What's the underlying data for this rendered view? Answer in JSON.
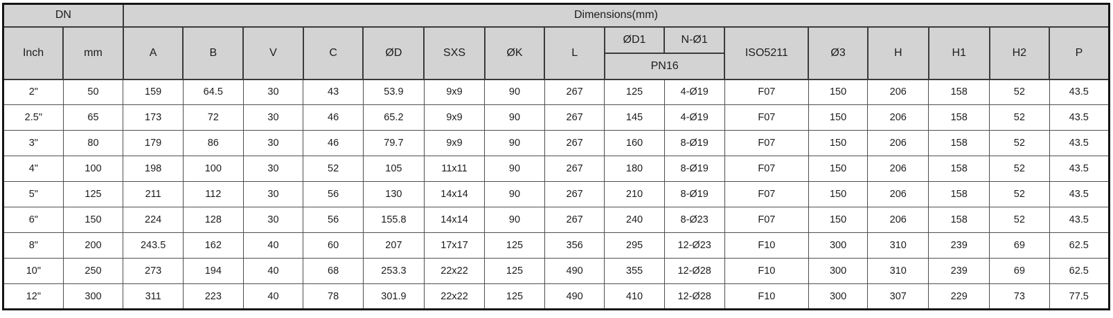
{
  "table": {
    "header": {
      "dn_label": "DN",
      "dimensions_label": "Dimensions(mm)",
      "pn16_label": "PN16",
      "columns": [
        "Inch",
        "mm",
        "A",
        "B",
        "V",
        "C",
        "ØD",
        "SXS",
        "ØK",
        "L",
        "ØD1",
        "N-Ø1",
        "ISO5211",
        "Ø3",
        "H",
        "H1",
        "H2",
        "P"
      ]
    },
    "rows": [
      [
        "2\"",
        "50",
        "159",
        "64.5",
        "30",
        "43",
        "53.9",
        "9x9",
        "90",
        "267",
        "125",
        "4-Ø19",
        "F07",
        "150",
        "206",
        "158",
        "52",
        "43.5"
      ],
      [
        "2.5\"",
        "65",
        "173",
        "72",
        "30",
        "46",
        "65.2",
        "9x9",
        "90",
        "267",
        "145",
        "4-Ø19",
        "F07",
        "150",
        "206",
        "158",
        "52",
        "43.5"
      ],
      [
        "3\"",
        "80",
        "179",
        "86",
        "30",
        "46",
        "79.7",
        "9x9",
        "90",
        "267",
        "160",
        "8-Ø19",
        "F07",
        "150",
        "206",
        "158",
        "52",
        "43.5"
      ],
      [
        "4\"",
        "100",
        "198",
        "100",
        "30",
        "52",
        "105",
        "11x11",
        "90",
        "267",
        "180",
        "8-Ø19",
        "F07",
        "150",
        "206",
        "158",
        "52",
        "43.5"
      ],
      [
        "5\"",
        "125",
        "211",
        "112",
        "30",
        "56",
        "130",
        "14x14",
        "90",
        "267",
        "210",
        "8-Ø19",
        "F07",
        "150",
        "206",
        "158",
        "52",
        "43.5"
      ],
      [
        "6\"",
        "150",
        "224",
        "128",
        "30",
        "56",
        "155.8",
        "14x14",
        "90",
        "267",
        "240",
        "8-Ø23",
        "F07",
        "150",
        "206",
        "158",
        "52",
        "43.5"
      ],
      [
        "8\"",
        "200",
        "243.5",
        "162",
        "40",
        "60",
        "207",
        "17x17",
        "125",
        "356",
        "295",
        "12-Ø23",
        "F10",
        "300",
        "310",
        "239",
        "69",
        "62.5"
      ],
      [
        "10\"",
        "250",
        "273",
        "194",
        "40",
        "68",
        "253.3",
        "22x22",
        "125",
        "490",
        "355",
        "12-Ø28",
        "F10",
        "300",
        "310",
        "239",
        "69",
        "62.5"
      ],
      [
        "12\"",
        "300",
        "311",
        "223",
        "40",
        "78",
        "301.9",
        "22x22",
        "125",
        "490",
        "410",
        "12-Ø28",
        "F10",
        "300",
        "307",
        "229",
        "73",
        "77.5"
      ]
    ]
  },
  "colors": {
    "header_background": "#d3d3d3",
    "outer_border": "#141414",
    "inner_border": "#4d4d4d",
    "text": "#1c1c1c"
  }
}
